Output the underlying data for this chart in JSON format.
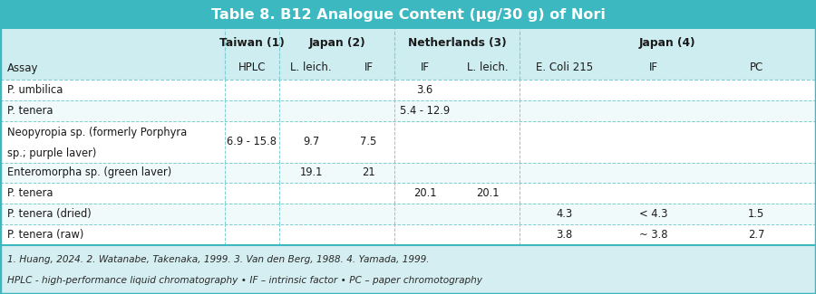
{
  "title": "Table 8. B12 Analogue Content (µg/30 g) of Nori",
  "title_bg": "#3cb8c0",
  "title_color": "#ffffff",
  "header_bg": "#ceedf0",
  "row_bg_white": "#ffffff",
  "row_bg_light": "#f0fafb",
  "footer_bg": "#d4eef1",
  "border_color": "#3cb8c0",
  "dashed_color": "#7fcdd2",
  "text_color": "#1a1a1a",
  "footer_text_color": "#2a2a2a",
  "col_headers": [
    "Assay",
    "HPLC",
    "L. leich.",
    "IF",
    "IF",
    "L. leich.",
    "E. Coli 215",
    "IF",
    "PC"
  ],
  "rows": [
    [
      "P. umbilica",
      "",
      "",
      "",
      "3.6",
      "",
      "",
      "",
      ""
    ],
    [
      "P. tenera",
      "",
      "",
      "",
      "5.4 - 12.9",
      "",
      "",
      "",
      ""
    ],
    [
      "Neopyropia sp. (formerly Porphyra\nsp.; purple laver)",
      "6.9 - 15.8",
      "9.7",
      "7.5",
      "",
      "",
      "",
      "",
      ""
    ],
    [
      "Enteromorpha sp. (green laver)",
      "",
      "19.1",
      "21",
      "",
      "",
      "",
      "",
      ""
    ],
    [
      "P. tenera",
      "",
      "",
      "",
      "20.1",
      "20.1",
      "",
      "",
      ""
    ],
    [
      "P. tenera (dried)",
      "",
      "",
      "",
      "",
      "",
      "4.3",
      "< 4.3",
      "1.5"
    ],
    [
      "P. tenera (raw)",
      "",
      "",
      "",
      "",
      "",
      "3.8",
      "~ 3.8",
      "2.7"
    ]
  ],
  "footnote1": "1. Huang, 2024. 2. Watanabe, Takenaka, 1999. 3. Van den Berg, 1988. 4. Yamada, 1999.",
  "footnote2": "HPLC - high-performance liquid chromatography • IF – intrinsic factor • PC – paper chromotography"
}
